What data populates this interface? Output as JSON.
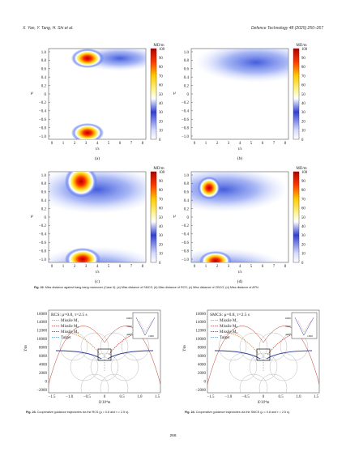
{
  "header": {
    "authors": "X. Yan, Y. Tang, H. Shi et al.",
    "journal": "Defence Technology 48 (2025) 250–267"
  },
  "heatmaps": {
    "panels": [
      {
        "label": "(a)"
      },
      {
        "label": "(b)"
      },
      {
        "label": "(c)"
      },
      {
        "label": "(d)"
      }
    ],
    "ylabel": "μ",
    "xlabel": "τ/s",
    "colorbar_title": "MD/m",
    "colorbar_ticks": [
      "100",
      "90",
      "80",
      "70",
      "60",
      "50",
      "40",
      "30",
      "20",
      "10",
      "0"
    ],
    "yticks": [
      "1.0",
      "0.8",
      "0.6",
      "0.4",
      "0.2",
      "0",
      "−0.2",
      "−0.4",
      "−0.6",
      "−0.8",
      "−1.0"
    ],
    "xticks": [
      "0",
      "1",
      "2",
      "3",
      "4",
      "5",
      "6",
      "7",
      "8"
    ],
    "fig_caption_num": "Fig. 22.",
    "fig_caption_text": "Miss distance against bang-bang maneuver (Case II): (a) Miss distance of SMCS; (b) Miss distance of RCS; (c) Miss distance of CBCG; (d) Miss distance of APN."
  },
  "trajectories": {
    "panels": [
      {
        "params": "RCS: μ=0.8, τ=2.5 s",
        "caption_num": "Fig. 23.",
        "caption_text": "Cooperative guidance trajectories via the RCS (μ = 0.8 and τ = 2.5 s)."
      },
      {
        "params": "SMCS: μ=0.8, τ=2.5 s",
        "caption_num": "Fig. 24.",
        "caption_text": "Cooperative guidance trajectories via the SMCS (μ = 0.8 and τ = 2.5 s)."
      }
    ],
    "legend": [
      "Missile M₁",
      "Missile M₂",
      "Missile M₃",
      "Target"
    ],
    "ylabel": "Y/m",
    "xlabel": "X/10⁴m",
    "yticks": [
      "16000",
      "14000",
      "12000",
      "10000",
      "8000",
      "6000",
      "4000",
      "2000",
      "0",
      "−2000"
    ],
    "xticks": [
      "−1.5",
      "−1.0",
      "−0.5",
      "0",
      "0.5",
      "1.0",
      "1.5"
    ],
    "inset_ticks": [
      "6000",
      "5000",
      "4000"
    ],
    "inset_xtick": "1000"
  },
  "page_number": "266",
  "colors": {
    "m1": "#e08a2a",
    "m2": "#c0392b",
    "m3": "#2c3e9a",
    "target": "#3aa0d8",
    "circle": "#999999"
  }
}
